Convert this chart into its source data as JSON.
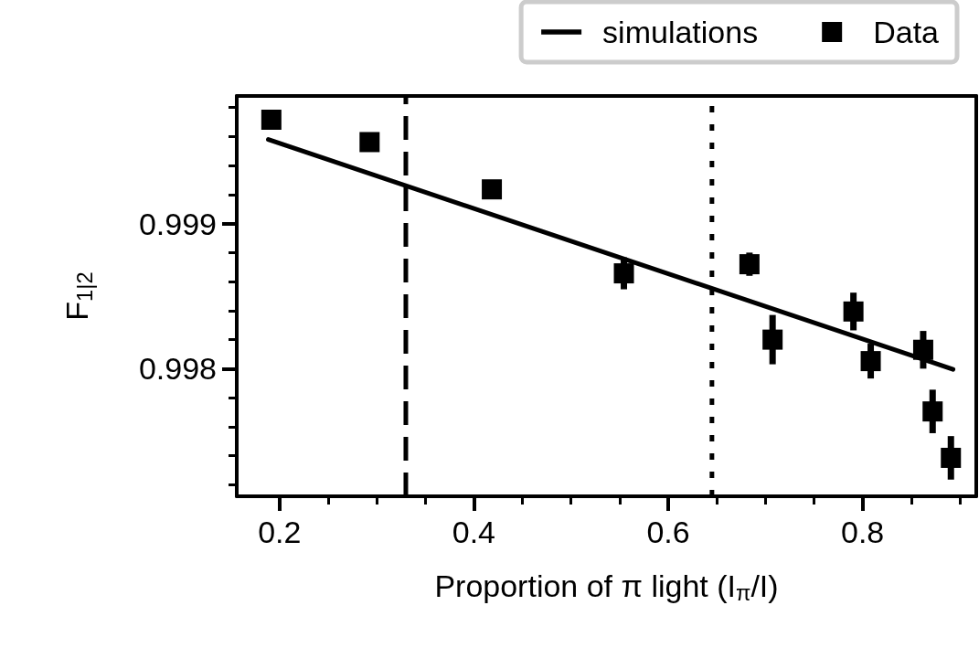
{
  "chart_data": {
    "type": "scatter",
    "xlabel": "Proportion of π light (I$_{π}$/I)",
    "ylabel": "F$_{1|2}$",
    "xlim": [
      0.156,
      0.917
    ],
    "ylim": [
      0.99712,
      0.99988
    ],
    "xticks": [
      0.2,
      {
        "value": 0.25,
        "label": null
      },
      {
        "value": 0.3,
        "label": null
      },
      {
        "value": 0.35,
        "label": null
      },
      0.4,
      {
        "value": 0.45,
        "label": null
      },
      {
        "value": 0.5,
        "label": null
      },
      {
        "value": 0.55,
        "label": null
      },
      0.6,
      {
        "value": 0.65,
        "label": null
      },
      {
        "value": 0.7,
        "label": null
      },
      {
        "value": 0.75,
        "label": null
      },
      0.8,
      {
        "value": 0.85,
        "label": null
      },
      {
        "value": 0.9,
        "label": null
      }
    ],
    "yticks": [
      {
        "value": 0.9972,
        "label": null
      },
      {
        "value": 0.9974,
        "label": null
      },
      {
        "value": 0.9976,
        "label": null
      },
      {
        "value": 0.9978,
        "label": null
      },
      0.998,
      {
        "value": 0.9982,
        "label": null
      },
      {
        "value": 0.9984,
        "label": null
      },
      {
        "value": 0.9986,
        "label": null
      },
      {
        "value": 0.9988,
        "label": null
      },
      0.999,
      {
        "value": 0.9992,
        "label": null
      },
      {
        "value": 0.9994,
        "label": null
      },
      {
        "value": 0.9996,
        "label": null
      },
      {
        "value": 0.9998,
        "label": null
      }
    ],
    "grid": false,
    "legend": "top",
    "series": [
      {
        "name": "simulations",
        "type": "line",
        "marker": "none",
        "line_style": "solid",
        "color": "#000000",
        "x": [
          0.1885,
          0.8931
        ],
        "values": [
          0.99958,
          0.997995
        ]
      },
      {
        "name": "Data",
        "marker": "square",
        "color": "#000000",
        "x": [
          0.1916,
          0.2927,
          0.4185,
          0.5544,
          0.6836,
          0.7074,
          0.7906,
          0.8084,
          0.8624,
          0.8721,
          0.8909
        ],
        "values": [
          0.999716,
          0.999562,
          0.999236,
          0.998657,
          0.99872,
          0.9982,
          0.998394,
          0.998052,
          0.99813,
          0.997705,
          0.997385
        ],
        "errors": [
          null,
          null,
          null,
          0.00011,
          8e-05,
          0.00017,
          0.00013,
          0.00012,
          0.00013,
          0.00015,
          0.00015
        ]
      }
    ],
    "ref_lines": [
      {
        "axis": "x",
        "value": 0.33,
        "label": null,
        "color": "#000000",
        "line_style": "dashed"
      },
      {
        "axis": "x",
        "value": 0.645,
        "label": null,
        "color": "#000000",
        "line_style": "dotted"
      }
    ]
  }
}
